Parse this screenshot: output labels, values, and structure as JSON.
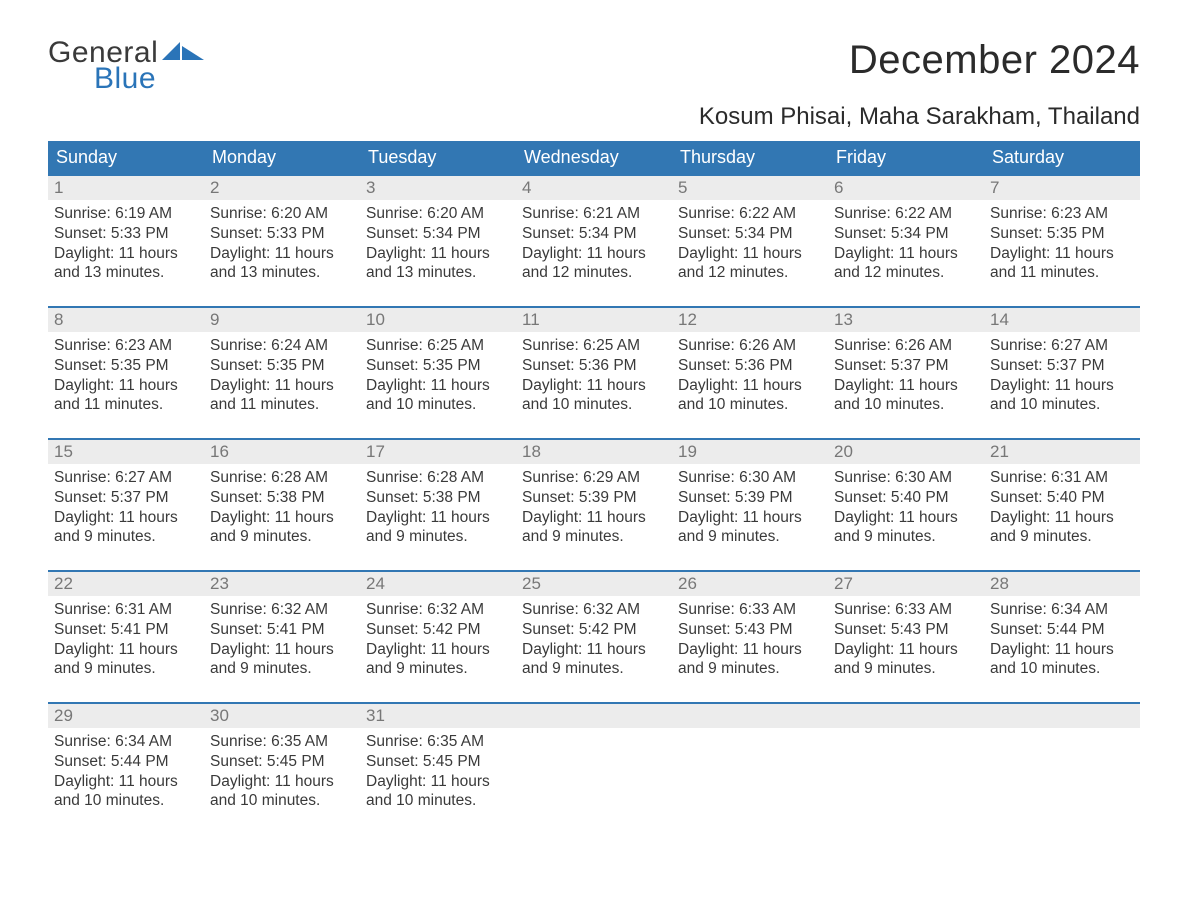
{
  "brand": {
    "general": "General",
    "blue": "Blue"
  },
  "title": "December 2024",
  "location": "Kosum Phisai, Maha Sarakham, Thailand",
  "colors": {
    "header_bg": "#3277b3",
    "header_text": "#ffffff",
    "row_border": "#3277b3",
    "daynum_bg": "#ececec",
    "daynum_text": "#777777",
    "body_text": "#3a3a3a",
    "brand_blue": "#2a74b8",
    "page_bg": "#ffffff"
  },
  "calendar": {
    "weekdays": [
      "Sunday",
      "Monday",
      "Tuesday",
      "Wednesday",
      "Thursday",
      "Friday",
      "Saturday"
    ],
    "weeks": [
      [
        {
          "n": "1",
          "sr": "Sunrise: 6:19 AM",
          "ss": "Sunset: 5:33 PM",
          "d1": "Daylight: 11 hours",
          "d2": "and 13 minutes."
        },
        {
          "n": "2",
          "sr": "Sunrise: 6:20 AM",
          "ss": "Sunset: 5:33 PM",
          "d1": "Daylight: 11 hours",
          "d2": "and 13 minutes."
        },
        {
          "n": "3",
          "sr": "Sunrise: 6:20 AM",
          "ss": "Sunset: 5:34 PM",
          "d1": "Daylight: 11 hours",
          "d2": "and 13 minutes."
        },
        {
          "n": "4",
          "sr": "Sunrise: 6:21 AM",
          "ss": "Sunset: 5:34 PM",
          "d1": "Daylight: 11 hours",
          "d2": "and 12 minutes."
        },
        {
          "n": "5",
          "sr": "Sunrise: 6:22 AM",
          "ss": "Sunset: 5:34 PM",
          "d1": "Daylight: 11 hours",
          "d2": "and 12 minutes."
        },
        {
          "n": "6",
          "sr": "Sunrise: 6:22 AM",
          "ss": "Sunset: 5:34 PM",
          "d1": "Daylight: 11 hours",
          "d2": "and 12 minutes."
        },
        {
          "n": "7",
          "sr": "Sunrise: 6:23 AM",
          "ss": "Sunset: 5:35 PM",
          "d1": "Daylight: 11 hours",
          "d2": "and 11 minutes."
        }
      ],
      [
        {
          "n": "8",
          "sr": "Sunrise: 6:23 AM",
          "ss": "Sunset: 5:35 PM",
          "d1": "Daylight: 11 hours",
          "d2": "and 11 minutes."
        },
        {
          "n": "9",
          "sr": "Sunrise: 6:24 AM",
          "ss": "Sunset: 5:35 PM",
          "d1": "Daylight: 11 hours",
          "d2": "and 11 minutes."
        },
        {
          "n": "10",
          "sr": "Sunrise: 6:25 AM",
          "ss": "Sunset: 5:35 PM",
          "d1": "Daylight: 11 hours",
          "d2": "and 10 minutes."
        },
        {
          "n": "11",
          "sr": "Sunrise: 6:25 AM",
          "ss": "Sunset: 5:36 PM",
          "d1": "Daylight: 11 hours",
          "d2": "and 10 minutes."
        },
        {
          "n": "12",
          "sr": "Sunrise: 6:26 AM",
          "ss": "Sunset: 5:36 PM",
          "d1": "Daylight: 11 hours",
          "d2": "and 10 minutes."
        },
        {
          "n": "13",
          "sr": "Sunrise: 6:26 AM",
          "ss": "Sunset: 5:37 PM",
          "d1": "Daylight: 11 hours",
          "d2": "and 10 minutes."
        },
        {
          "n": "14",
          "sr": "Sunrise: 6:27 AM",
          "ss": "Sunset: 5:37 PM",
          "d1": "Daylight: 11 hours",
          "d2": "and 10 minutes."
        }
      ],
      [
        {
          "n": "15",
          "sr": "Sunrise: 6:27 AM",
          "ss": "Sunset: 5:37 PM",
          "d1": "Daylight: 11 hours",
          "d2": "and 9 minutes."
        },
        {
          "n": "16",
          "sr": "Sunrise: 6:28 AM",
          "ss": "Sunset: 5:38 PM",
          "d1": "Daylight: 11 hours",
          "d2": "and 9 minutes."
        },
        {
          "n": "17",
          "sr": "Sunrise: 6:28 AM",
          "ss": "Sunset: 5:38 PM",
          "d1": "Daylight: 11 hours",
          "d2": "and 9 minutes."
        },
        {
          "n": "18",
          "sr": "Sunrise: 6:29 AM",
          "ss": "Sunset: 5:39 PM",
          "d1": "Daylight: 11 hours",
          "d2": "and 9 minutes."
        },
        {
          "n": "19",
          "sr": "Sunrise: 6:30 AM",
          "ss": "Sunset: 5:39 PM",
          "d1": "Daylight: 11 hours",
          "d2": "and 9 minutes."
        },
        {
          "n": "20",
          "sr": "Sunrise: 6:30 AM",
          "ss": "Sunset: 5:40 PM",
          "d1": "Daylight: 11 hours",
          "d2": "and 9 minutes."
        },
        {
          "n": "21",
          "sr": "Sunrise: 6:31 AM",
          "ss": "Sunset: 5:40 PM",
          "d1": "Daylight: 11 hours",
          "d2": "and 9 minutes."
        }
      ],
      [
        {
          "n": "22",
          "sr": "Sunrise: 6:31 AM",
          "ss": "Sunset: 5:41 PM",
          "d1": "Daylight: 11 hours",
          "d2": "and 9 minutes."
        },
        {
          "n": "23",
          "sr": "Sunrise: 6:32 AM",
          "ss": "Sunset: 5:41 PM",
          "d1": "Daylight: 11 hours",
          "d2": "and 9 minutes."
        },
        {
          "n": "24",
          "sr": "Sunrise: 6:32 AM",
          "ss": "Sunset: 5:42 PM",
          "d1": "Daylight: 11 hours",
          "d2": "and 9 minutes."
        },
        {
          "n": "25",
          "sr": "Sunrise: 6:32 AM",
          "ss": "Sunset: 5:42 PM",
          "d1": "Daylight: 11 hours",
          "d2": "and 9 minutes."
        },
        {
          "n": "26",
          "sr": "Sunrise: 6:33 AM",
          "ss": "Sunset: 5:43 PM",
          "d1": "Daylight: 11 hours",
          "d2": "and 9 minutes."
        },
        {
          "n": "27",
          "sr": "Sunrise: 6:33 AM",
          "ss": "Sunset: 5:43 PM",
          "d1": "Daylight: 11 hours",
          "d2": "and 9 minutes."
        },
        {
          "n": "28",
          "sr": "Sunrise: 6:34 AM",
          "ss": "Sunset: 5:44 PM",
          "d1": "Daylight: 11 hours",
          "d2": "and 10 minutes."
        }
      ],
      [
        {
          "n": "29",
          "sr": "Sunrise: 6:34 AM",
          "ss": "Sunset: 5:44 PM",
          "d1": "Daylight: 11 hours",
          "d2": "and 10 minutes."
        },
        {
          "n": "30",
          "sr": "Sunrise: 6:35 AM",
          "ss": "Sunset: 5:45 PM",
          "d1": "Daylight: 11 hours",
          "d2": "and 10 minutes."
        },
        {
          "n": "31",
          "sr": "Sunrise: 6:35 AM",
          "ss": "Sunset: 5:45 PM",
          "d1": "Daylight: 11 hours",
          "d2": "and 10 minutes."
        },
        {
          "n": "",
          "sr": "",
          "ss": "",
          "d1": "",
          "d2": ""
        },
        {
          "n": "",
          "sr": "",
          "ss": "",
          "d1": "",
          "d2": ""
        },
        {
          "n": "",
          "sr": "",
          "ss": "",
          "d1": "",
          "d2": ""
        },
        {
          "n": "",
          "sr": "",
          "ss": "",
          "d1": "",
          "d2": ""
        }
      ]
    ]
  }
}
